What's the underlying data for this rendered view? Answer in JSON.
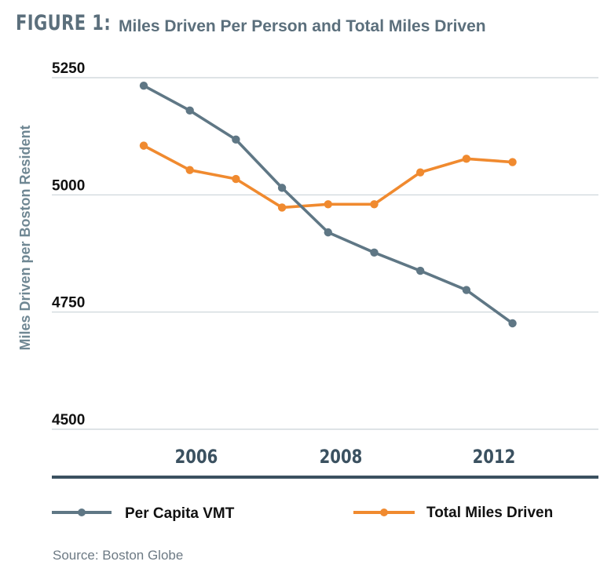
{
  "figure": {
    "label": "FIGURE 1:",
    "title": "Miles Driven Per Person and Total Miles Driven"
  },
  "source": "Source: Boston Globe",
  "colors": {
    "per_capita": "#5f7785",
    "total": "#f08a2f",
    "title": "#5b6f7c",
    "grid": "#c9d2d8",
    "baseline": "#3b5160"
  },
  "chart_data": {
    "type": "line",
    "title": "Miles Driven Per Person and Total Miles Driven",
    "ylabel": "Miles Driven per Boston Resident",
    "xlabel": "",
    "ylim": [
      4500,
      5250
    ],
    "yticks": [
      5250,
      5000,
      4750,
      4500
    ],
    "xtick_labels": [
      "2006",
      "2008",
      "2012"
    ],
    "grid": true,
    "legend_position": "bottom",
    "series": [
      {
        "name": "Per Capita VMT",
        "values": [
          5233,
          5180,
          5118,
          5015,
          4920,
          4877,
          4838,
          4797,
          4726
        ]
      },
      {
        "name": "Total Miles Driven",
        "values": [
          5105,
          5053,
          5034,
          4973,
          4980,
          4980,
          5048,
          5077,
          5070
        ]
      }
    ]
  }
}
